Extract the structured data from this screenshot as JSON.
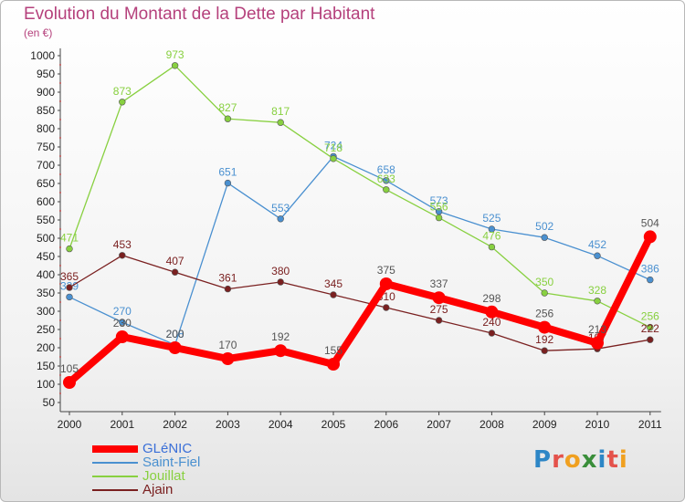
{
  "title": "Evolution du Montant de la Dette par Habitant",
  "subtitle": "(en €)",
  "brand": {
    "letters": [
      {
        "ch": "P",
        "color": "#2d86c6"
      },
      {
        "ch": "r",
        "color": "#e4524b"
      },
      {
        "ch": "o",
        "color": "#f0a020"
      },
      {
        "ch": "x",
        "color": "#3a8e3a"
      },
      {
        "ch": "i",
        "color": "#2d86c6"
      },
      {
        "ch": "t",
        "color": "#e4524b"
      },
      {
        "ch": "i",
        "color": "#f0a020"
      }
    ]
  },
  "chart_data": {
    "type": "line",
    "title": "Evolution du Montant de la Dette par Habitant",
    "subtitle": "(en €)",
    "x": [
      "2000",
      "2001",
      "2002",
      "2003",
      "2004",
      "2005",
      "2006",
      "2007",
      "2008",
      "2009",
      "2010",
      "2011"
    ],
    "ylim": [
      50,
      1000
    ],
    "yticks": [
      50,
      100,
      150,
      200,
      250,
      300,
      350,
      400,
      450,
      500,
      550,
      600,
      650,
      700,
      750,
      800,
      850,
      900,
      950,
      1000
    ],
    "grid": false,
    "legend": "bottom-left",
    "series": [
      {
        "name": "GLéNIC",
        "color": "#ff0000",
        "label_color": "#555555",
        "bold": true,
        "values": [
          105,
          230,
          200,
          170,
          192,
          155,
          375,
          337,
          298,
          256,
          213,
          504
        ]
      },
      {
        "name": "Saint-Fiel",
        "color": "#4a90d0",
        "label_color": "#4a90d0",
        "bold": false,
        "values": [
          339,
          270,
          208,
          651,
          553,
          724,
          658,
          573,
          525,
          502,
          452,
          386
        ]
      },
      {
        "name": "Jouillat",
        "color": "#88d040",
        "label_color": "#88d040",
        "bold": false,
        "values": [
          471,
          873,
          973,
          827,
          817,
          718,
          633,
          556,
          476,
          350,
          328,
          256
        ]
      },
      {
        "name": "Ajain",
        "color": "#7a2020",
        "label_color": "#7a2020",
        "bold": false,
        "values": [
          365,
          453,
          407,
          361,
          380,
          345,
          310,
          275,
          240,
          192,
          197,
          222
        ]
      }
    ]
  }
}
